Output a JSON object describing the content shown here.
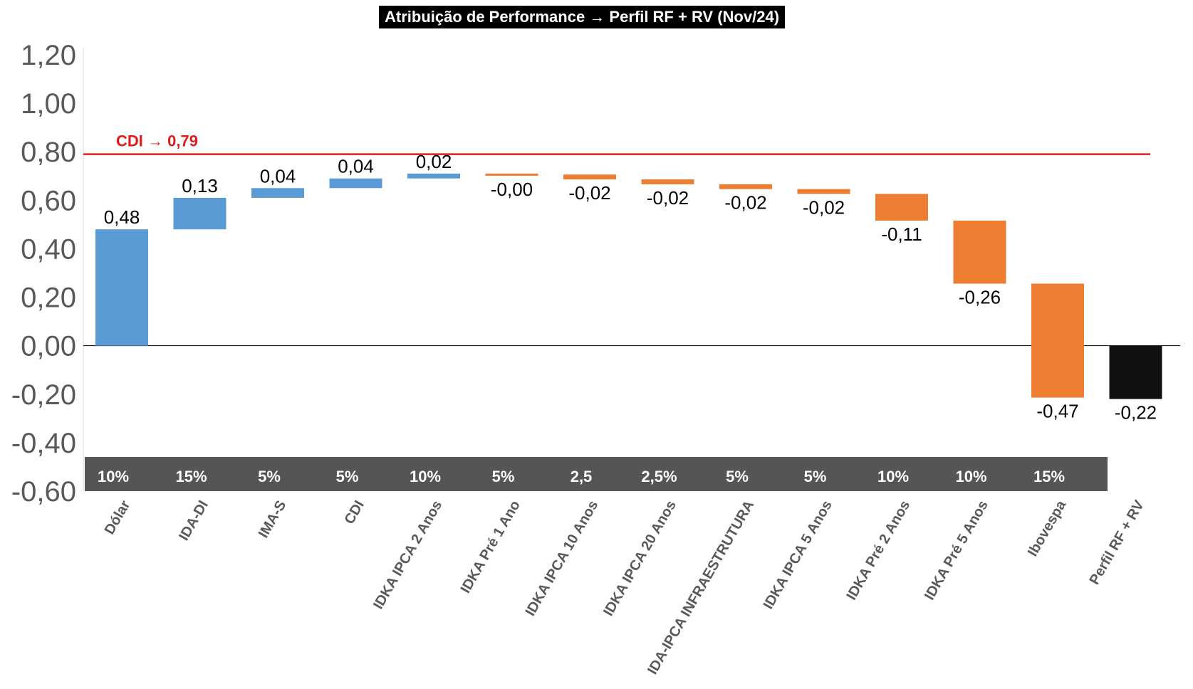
{
  "chart_data": {
    "type": "waterfall",
    "title": "Atribuição de Performance → Perfil RF + RV (Nov/24)",
    "ylim": [
      -0.6,
      1.2
    ],
    "yticks": [
      "1,20",
      "1,00",
      "0,80",
      "0,60",
      "0,40",
      "0,20",
      "0,00",
      "-0,20",
      "-0,40",
      "-0,60"
    ],
    "ytick_values": [
      1.2,
      1.0,
      0.8,
      0.6,
      0.4,
      0.2,
      0.0,
      -0.2,
      -0.4,
      -0.6
    ],
    "reference_line": {
      "label": "CDI → 0,79",
      "value": 0.79,
      "color": "#e01b1b"
    },
    "categories": [
      "Dólar",
      "IDA-DI",
      "IMA-S",
      "CDI",
      "IDKA IPCA 2 Anos",
      "IDKA Pré 1 Ano",
      "IDKA IPCA 10 Anos",
      "IDKA IPCA 20 Anos",
      "IDA-IPCA INFRAESTRUTURA",
      "IDKA IPCA 5 Anos",
      "IDKA Pré 2 Anos",
      "IDKA Pré 5 Anos",
      "Ibovespa",
      "Perfil RF + RV"
    ],
    "values": [
      0.48,
      0.13,
      0.04,
      0.04,
      0.02,
      -0.004,
      -0.02,
      -0.02,
      -0.02,
      -0.02,
      -0.11,
      -0.26,
      -0.47,
      -0.22
    ],
    "value_labels": [
      "0,48",
      "0,13",
      "0,04",
      "0,04",
      "0,02",
      "-0,00",
      "-0,02",
      "-0,02",
      "-0,02",
      "-0,02",
      "-0,11",
      "-0,26",
      "-0,47",
      "-0,22"
    ],
    "weights": [
      "10%",
      "15%",
      "5%",
      "5%",
      "10%",
      "5%",
      "2,5",
      "2,5%",
      "5%",
      "5%",
      "10%",
      "10%",
      "15%"
    ],
    "total_index": 13,
    "colors": {
      "positive": "#5b9bd5",
      "negative": "#ed7d31",
      "total": "#111111",
      "weights_band": "#555555",
      "weights_text": "#ffffff"
    }
  }
}
